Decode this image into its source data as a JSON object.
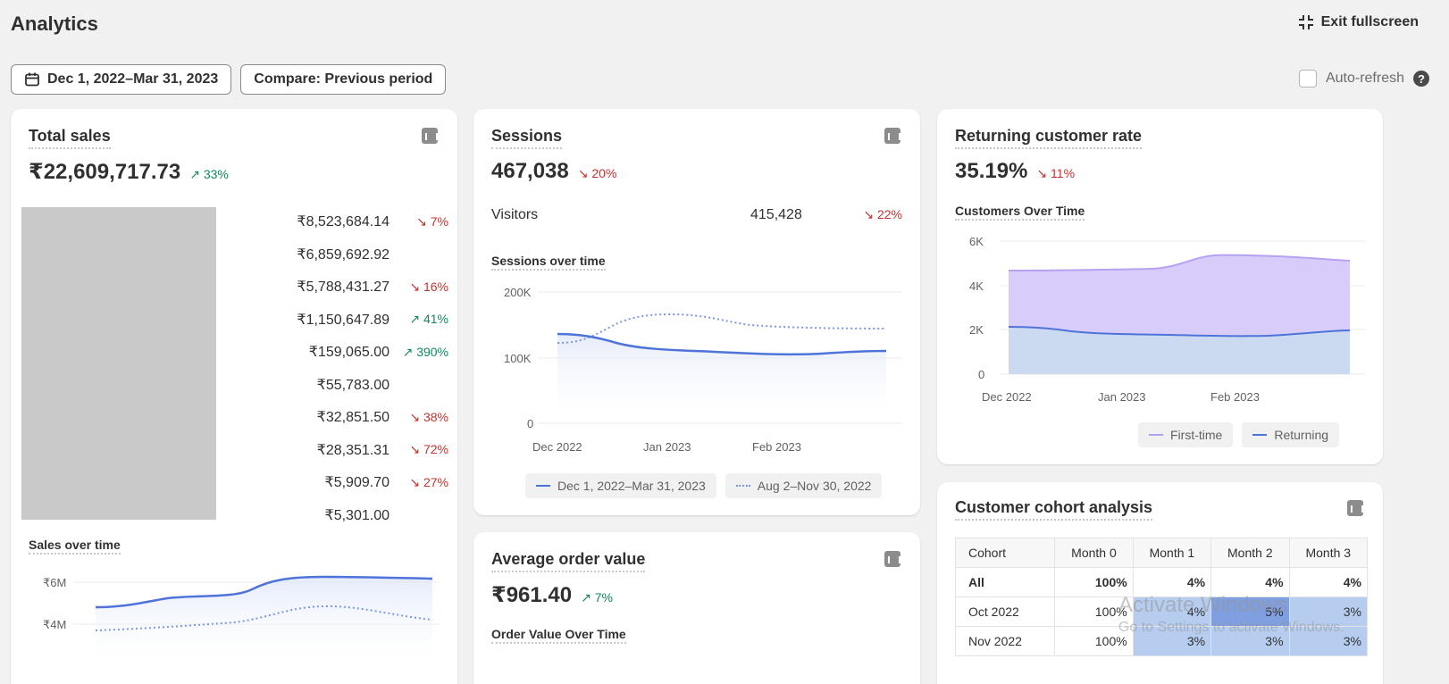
{
  "header": {
    "title": "Analytics",
    "exit_label": "Exit fullscreen"
  },
  "toolbar": {
    "date_range": "Dec 1, 2022–Mar 31, 2023",
    "compare": "Compare: Previous period",
    "auto_refresh": "Auto-refresh"
  },
  "total_sales": {
    "title": "Total sales",
    "value": "₹22,609,717.73",
    "delta": "33%",
    "rows": [
      {
        "amount": "₹8,523,684.14",
        "change": "7%",
        "dir": "down"
      },
      {
        "amount": "₹6,859,692.92",
        "change": "",
        "dir": ""
      },
      {
        "amount": "₹5,788,431.27",
        "change": "16%",
        "dir": "down"
      },
      {
        "amount": "₹1,150,647.89",
        "change": "41%",
        "dir": "up"
      },
      {
        "amount": "₹159,065.00",
        "change": "390%",
        "dir": "up"
      },
      {
        "amount": "₹55,783.00",
        "change": "",
        "dir": ""
      },
      {
        "amount": "₹32,851.50",
        "change": "38%",
        "dir": "down"
      },
      {
        "amount": "₹28,351.31",
        "change": "72%",
        "dir": "down"
      },
      {
        "amount": "₹5,909.70",
        "change": "27%",
        "dir": "down"
      },
      {
        "amount": "₹5,301.00",
        "change": "",
        "dir": ""
      }
    ],
    "chart_title": "Sales over time",
    "y_ticks": [
      "₹6M",
      "₹4M"
    ]
  },
  "sessions": {
    "title": "Sessions",
    "value": "467,038",
    "delta": "20%",
    "visitors_label": "Visitors",
    "visitors_value": "415,428",
    "visitors_delta": "22%",
    "chart_title": "Sessions over time",
    "y_ticks": [
      "200K",
      "100K",
      "0"
    ],
    "x_ticks": [
      "Dec 2022",
      "Jan 2023",
      "Feb 2023"
    ],
    "legend": [
      "Dec 1, 2022–Mar 31, 2023",
      "Aug 2–Nov 30, 2022"
    ]
  },
  "aov": {
    "title": "Average order value",
    "value": "₹961.40",
    "delta": "7%",
    "chart_title": "Order Value Over Time"
  },
  "returning": {
    "title": "Returning customer rate",
    "value": "35.19%",
    "delta": "11%",
    "chart_title": "Customers Over Time",
    "y_ticks": [
      "6K",
      "4K",
      "2K",
      "0"
    ],
    "x_ticks": [
      "Dec 2022",
      "Jan 2023",
      "Feb 2023"
    ],
    "legend": [
      "First-time",
      "Returning"
    ]
  },
  "cohort": {
    "title": "Customer cohort analysis",
    "headers": [
      "Cohort",
      "Month 0",
      "Month 1",
      "Month 2",
      "Month 3"
    ],
    "rows": [
      [
        "All",
        "100%",
        "4%",
        "4%",
        "4%"
      ],
      [
        "Oct 2022",
        "100%",
        "4%",
        "5%",
        "3%"
      ],
      [
        "Nov 2022",
        "100%",
        "3%",
        "3%",
        "3%"
      ]
    ]
  },
  "watermark": {
    "line1": "Activate Windows",
    "line2": "Go to Settings to activate Windows."
  },
  "colors": {
    "primary_line": "#4f74d9",
    "first_time": "#c9b8f5",
    "returning": "#b9cdee",
    "up": "#0f8a5f",
    "down": "#c4322d"
  }
}
